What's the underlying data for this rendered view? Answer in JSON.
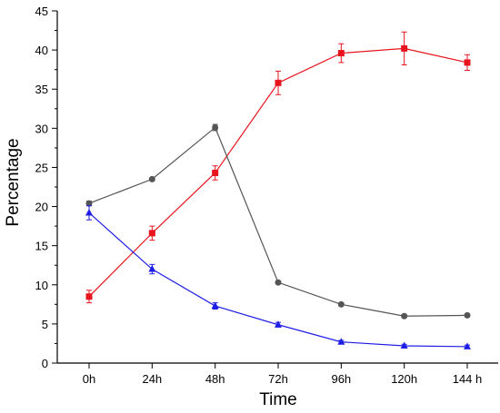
{
  "chart_data": {
    "type": "line",
    "title": "",
    "xlabel": "Time",
    "ylabel": "Percentage",
    "categories": [
      "0h",
      "24h",
      "48h",
      "72h",
      "96h",
      "120h",
      "144 h"
    ],
    "ylim": [
      0,
      45
    ],
    "yticks": [
      "0",
      "5",
      "10",
      "15",
      "20",
      "25",
      "30",
      "35",
      "40",
      "45"
    ],
    "grid": false,
    "legend": "none",
    "series": [
      {
        "color": "#e8141e",
        "marker": "square",
        "values": [
          8.5,
          16.6,
          24.3,
          35.8,
          39.6,
          40.2,
          38.4
        ],
        "errors": [
          0.8,
          0.9,
          0.9,
          1.5,
          1.2,
          2.1,
          1.0
        ]
      },
      {
        "color": "#555555",
        "marker": "circle",
        "values": [
          20.4,
          23.5,
          30.1,
          10.3,
          7.5,
          6.0,
          6.1
        ],
        "errors": [
          0.3,
          0.2,
          0.4,
          0.2,
          0.2,
          0.2,
          0.2
        ]
      },
      {
        "color": "#1e1ee6",
        "marker": "triangle",
        "values": [
          19.2,
          12.0,
          7.3,
          4.9,
          2.7,
          2.2,
          2.1
        ],
        "errors": [
          0.9,
          0.6,
          0.4,
          0.3,
          0.2,
          0.2,
          0.2
        ]
      }
    ]
  }
}
